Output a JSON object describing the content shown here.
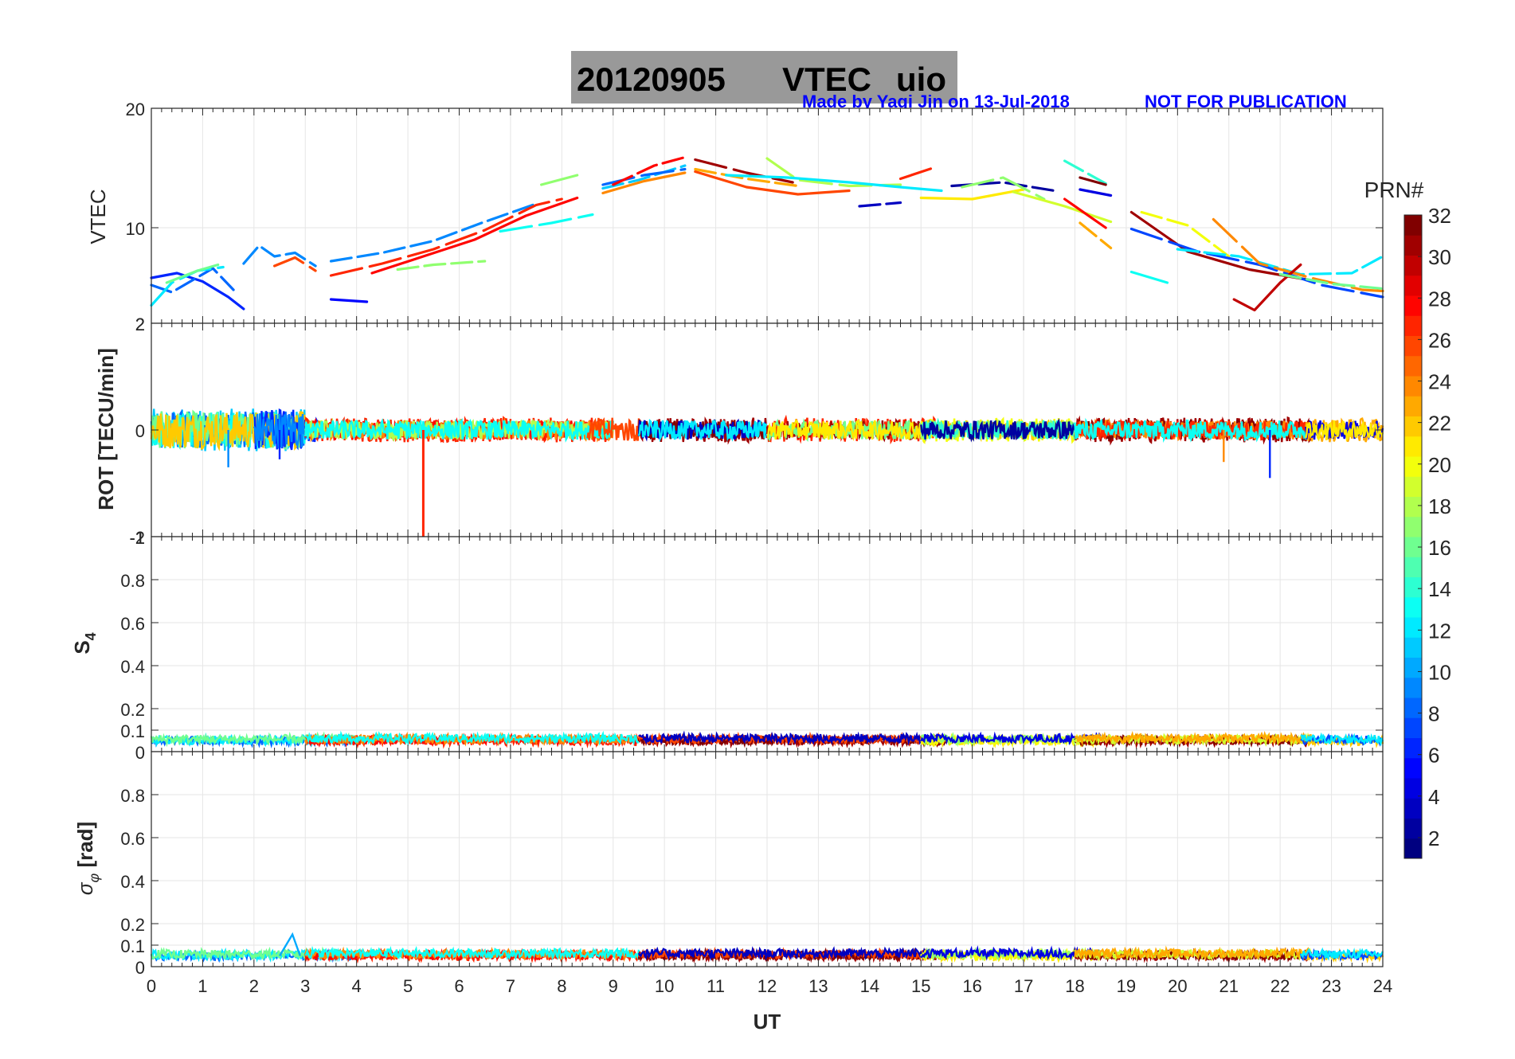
{
  "header": {
    "title_date": "20120905",
    "title_name": "VTEC",
    "title_station": "uio",
    "credit": "Made by Yaqi Jin on 13-Jul-2018",
    "notice": "NOT FOR PUBLICATION",
    "title_bg": "#999999",
    "credit_color": "#0000ff"
  },
  "chart_data": {
    "type": "line",
    "x_axis": {
      "label": "UT",
      "range": [
        0,
        24
      ],
      "ticks": [
        0,
        1,
        2,
        3,
        4,
        5,
        6,
        7,
        8,
        9,
        10,
        11,
        12,
        13,
        14,
        15,
        16,
        17,
        18,
        19,
        20,
        21,
        22,
        23,
        24
      ]
    },
    "panels": [
      {
        "id": "vtec",
        "ylabel": "VTEC",
        "ylim": [
          2,
          20
        ],
        "yticks": [
          10,
          20
        ],
        "ytick_labels": [
          "10",
          "20"
        ],
        "extra_tick_labels": [
          "2"
        ],
        "grid": true,
        "series": [
          {
            "prn": 6,
            "x": [
              0,
              0.5,
              1,
              1.5,
              1.8
            ],
            "y": [
              5.8,
              6.2,
              5.5,
              4.2,
              3.2
            ]
          },
          {
            "prn": 8,
            "x": [
              0,
              0.4,
              0.8,
              1.2,
              1.6
            ],
            "y": [
              5.2,
              4.6,
              5.6,
              6.6,
              4.8
            ]
          },
          {
            "prn": 12,
            "x": [
              0,
              0.4,
              0.9,
              1.4
            ],
            "y": [
              3.5,
              5.4,
              6.4,
              6.7
            ]
          },
          {
            "prn": 16,
            "x": [
              0.3,
              0.9,
              1.3
            ],
            "y": [
              5.4,
              6.4,
              6.9
            ]
          },
          {
            "prn": 9,
            "x": [
              1.8,
              2.1,
              2.4,
              2.8,
              3.2
            ],
            "y": [
              7,
              8.5,
              7.6,
              7.9,
              6.8
            ]
          },
          {
            "prn": 26,
            "x": [
              2.4,
              2.8,
              3.2
            ],
            "y": [
              6.8,
              7.5,
              6.4
            ]
          },
          {
            "prn": 5,
            "x": [
              3.5,
              4.2
            ],
            "y": [
              4,
              3.8
            ]
          },
          {
            "prn": 9,
            "x": [
              3.5,
              4.5,
              5.5,
              6.5,
              7.5
            ],
            "y": [
              7.2,
              7.9,
              8.9,
              10.5,
              12
            ]
          },
          {
            "prn": 27,
            "x": [
              3.5,
              4.5,
              5.5,
              6.5,
              7.5,
              8
            ],
            "y": [
              6,
              7,
              8.2,
              9.8,
              11.9,
              12.4
            ]
          },
          {
            "prn": 28,
            "x": [
              4.3,
              5.3,
              6.3,
              7.3,
              8.3
            ],
            "y": [
              6.2,
              7.6,
              9,
              11,
              12.5
            ]
          },
          {
            "prn": 17,
            "x": [
              4.8,
              5.5,
              6.5
            ],
            "y": [
              6.5,
              6.9,
              7.2
            ]
          },
          {
            "prn": 13,
            "x": [
              6.8,
              7.8,
              8.6
            ],
            "y": [
              9.7,
              10.4,
              11.1
            ]
          },
          {
            "prn": 17,
            "x": [
              7.6,
              8.3
            ],
            "y": [
              13.6,
              14.4
            ]
          },
          {
            "prn": 11,
            "x": [
              8.8,
              9.5,
              10.4
            ],
            "y": [
              13.3,
              14,
              15.2
            ]
          },
          {
            "prn": 8,
            "x": [
              8.8,
              9.6,
              10.4
            ],
            "y": [
              13.6,
              14.4,
              14.9
            ]
          },
          {
            "prn": 24,
            "x": [
              8.8,
              9.6,
              10.4
            ],
            "y": [
              12.9,
              13.9,
              14.6
            ]
          },
          {
            "prn": 28,
            "x": [
              9,
              9.8,
              10.4
            ],
            "y": [
              13.6,
              15.2,
              15.9
            ]
          },
          {
            "prn": 31,
            "x": [
              10.6,
              11.6,
              12.5
            ],
            "y": [
              15.7,
              14.6,
              13.8
            ]
          },
          {
            "prn": 26,
            "x": [
              10.6,
              11.6,
              12.6,
              13.6
            ],
            "y": [
              14.7,
              13.4,
              12.8,
              13.1
            ]
          },
          {
            "prn": 23,
            "x": [
              10.6,
              11.6,
              12.6
            ],
            "y": [
              14.9,
              14.1,
              13.5
            ]
          },
          {
            "prn": 18,
            "x": [
              12,
              12.6,
              13.6,
              14.6
            ],
            "y": [
              15.8,
              14,
              13.5,
              13.6
            ]
          },
          {
            "prn": 12,
            "x": [
              11.2,
              12.4,
              13.6,
              14.6,
              15.4
            ],
            "y": [
              14.4,
              14.2,
              13.8,
              13.4,
              13.1
            ]
          },
          {
            "prn": 3,
            "x": [
              13.8,
              14.6
            ],
            "y": [
              11.8,
              12.1
            ]
          },
          {
            "prn": 27,
            "x": [
              14.6,
              15.3
            ],
            "y": [
              14.1,
              15.1
            ]
          },
          {
            "prn": 21,
            "x": [
              15,
              16,
              17
            ],
            "y": [
              12.5,
              12.4,
              13.2
            ]
          },
          {
            "prn": 2,
            "x": [
              15.6,
              16.6,
              17.6
            ],
            "y": [
              13.5,
              13.8,
              13.1
            ]
          },
          {
            "prn": 17,
            "x": [
              15.8,
              16.6,
              17.4
            ],
            "y": [
              13.4,
              14.2,
              12.4
            ]
          },
          {
            "prn": 19,
            "x": [
              16.8,
              17.8,
              18.7
            ],
            "y": [
              13,
              11.8,
              10.5
            ]
          },
          {
            "prn": 14,
            "x": [
              17.8,
              18.6
            ],
            "y": [
              15.6,
              13.7
            ]
          },
          {
            "prn": 32,
            "x": [
              18.1,
              18.6
            ],
            "y": [
              14.2,
              13.6
            ]
          },
          {
            "prn": 28,
            "x": [
              17.8,
              18.6
            ],
            "y": [
              12.4,
              10
            ]
          },
          {
            "prn": 23,
            "x": [
              18.1,
              18.7
            ],
            "y": [
              10.4,
              8.3
            ]
          },
          {
            "prn": 4,
            "x": [
              18.1,
              18.7
            ],
            "y": [
              13.2,
              12.7
            ]
          },
          {
            "prn": 31,
            "x": [
              19.1,
              20.2,
              21.4,
              22.6
            ],
            "y": [
              11.3,
              8,
              6.5,
              5.6
            ]
          },
          {
            "prn": 20,
            "x": [
              19.3,
              20.2,
              21
            ],
            "y": [
              11.3,
              10.2,
              7.6
            ]
          },
          {
            "prn": 7,
            "x": [
              19.1,
              20.4,
              21.6,
              22.8,
              24
            ],
            "y": [
              9.9,
              8,
              6.9,
              5.2,
              4.2
            ]
          },
          {
            "prn": 13,
            "x": [
              19.1,
              19.8
            ],
            "y": [
              6.3,
              5.4
            ]
          },
          {
            "prn": 12,
            "x": [
              20,
              21.2,
              22.4,
              23.4,
              24
            ],
            "y": [
              8.2,
              7.6,
              6.1,
              6.2,
              7.6
            ]
          },
          {
            "prn": 24,
            "x": [
              20.7,
              21.6,
              22.6,
              23.6,
              24
            ],
            "y": [
              10.7,
              7,
              5.8,
              4.8,
              4.7
            ]
          },
          {
            "prn": 30,
            "x": [
              21.1,
              21.5,
              22,
              22.4
            ],
            "y": [
              4,
              3.1,
              5.4,
              6.9
            ]
          },
          {
            "prn": 16,
            "x": [
              22,
              23,
              24
            ],
            "y": [
              6.1,
              5.3,
              4.9
            ]
          }
        ]
      },
      {
        "id": "rot",
        "ylabel": "ROT [TECU/min]",
        "ylim": [
          -2,
          2
        ],
        "yticks": [
          -2,
          0,
          2
        ],
        "ytick_labels": [
          "-2",
          "0",
          "2"
        ],
        "extra_tick_labels": [
          "-1"
        ],
        "grid": true,
        "spike": {
          "x": 5.3,
          "y_from": 0,
          "y_to": -2,
          "prn": 27
        }
      },
      {
        "id": "s4",
        "ylabel": "S4",
        "ylim": [
          0,
          1
        ],
        "yticks": [
          0.1,
          0.2,
          0.4,
          0.6,
          0.8
        ],
        "ytick_labels": [
          "0.1",
          "0.2",
          "0.4",
          "0.6",
          "0.8"
        ],
        "extra_tick_labels": [
          "0",
          "1"
        ],
        "grid": true,
        "baseline": 0.05
      },
      {
        "id": "sigma",
        "ylabel": "σφ [rad]",
        "ylim": [
          0,
          1
        ],
        "yticks": [
          0,
          0.1,
          0.2,
          0.4,
          0.6,
          0.8
        ],
        "ytick_labels": [
          "0",
          "0.1",
          "0.2",
          "0.4",
          "0.6",
          "0.8"
        ],
        "grid": true,
        "baseline": 0.05
      }
    ],
    "colorbar": {
      "label": "PRN#",
      "range": [
        1,
        32
      ],
      "tick_labels": [
        "2",
        "4",
        "6",
        "8",
        "10",
        "12",
        "14",
        "16",
        "18",
        "20",
        "22",
        "24",
        "26",
        "28",
        "30",
        "32"
      ],
      "colormap": "jet"
    }
  }
}
